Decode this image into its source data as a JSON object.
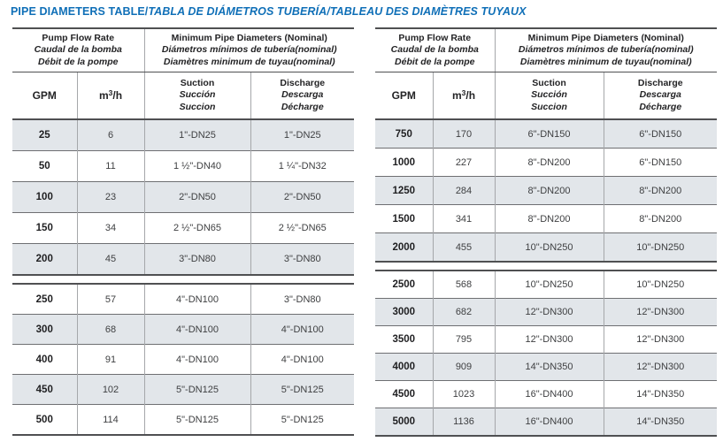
{
  "title": {
    "en": "PIPE DIAMETERS TABLE/",
    "intl": "TABLA DE DIÁMETROS TUBERÍA/TABLEAU DES DIAMÈTRES TUYAUX"
  },
  "colors": {
    "title_blue": "#0f6fb7",
    "row_shade": "#e2e6ea",
    "border_dark": "#4f5052",
    "border_row": "#6e6f72",
    "border_col": "#a5a7aa"
  },
  "header": {
    "flow_group": {
      "l1": "Pump Flow Rate",
      "l2": "Caudal de la bomba",
      "l3": "Débit de la pompe"
    },
    "diam_group": {
      "l1": "Minimum Pipe Diameters (Nominal)",
      "l2": "Diámetros mínimos de tubería(nominal)",
      "l3": "Diamètres minimum de tuyau(nominal)"
    },
    "col_gpm": "GPM",
    "col_m3h": {
      "base": "m",
      "sup": "3",
      "rest": "/h"
    },
    "col_suction": {
      "l1": "Suction",
      "l2": "Succión",
      "l3": "Succion"
    },
    "col_discharge": {
      "l1": "Discharge",
      "l2": "Descarga",
      "l3": "Décharge"
    }
  },
  "tables": {
    "left": {
      "section1": [
        {
          "gpm": "25",
          "m3h": "6",
          "suction": "1\"-DN25",
          "discharge": "1\"-DN25",
          "shaded": true
        },
        {
          "gpm": "50",
          "m3h": "11",
          "suction": "1 ½\"-DN40",
          "discharge": "1 ¼\"-DN32",
          "shaded": false
        },
        {
          "gpm": "100",
          "m3h": "23",
          "suction": "2\"-DN50",
          "discharge": "2\"-DN50",
          "shaded": true
        },
        {
          "gpm": "150",
          "m3h": "34",
          "suction": "2 ½\"-DN65",
          "discharge": "2 ½\"-DN65",
          "shaded": false
        },
        {
          "gpm": "200",
          "m3h": "45",
          "suction": "3\"-DN80",
          "discharge": "3\"-DN80",
          "shaded": true
        }
      ],
      "section2": [
        {
          "gpm": "250",
          "m3h": "57",
          "suction": "4\"-DN100",
          "discharge": "3\"-DN80",
          "shaded": false
        },
        {
          "gpm": "300",
          "m3h": "68",
          "suction": "4\"-DN100",
          "discharge": "4\"-DN100",
          "shaded": true
        },
        {
          "gpm": "400",
          "m3h": "91",
          "suction": "4\"-DN100",
          "discharge": "4\"-DN100",
          "shaded": false
        },
        {
          "gpm": "450",
          "m3h": "102",
          "suction": "5\"-DN125",
          "discharge": "5\"-DN125",
          "shaded": true
        },
        {
          "gpm": "500",
          "m3h": "114",
          "suction": "5\"-DN125",
          "discharge": "5\"-DN125",
          "shaded": false
        }
      ]
    },
    "right": {
      "section1": [
        {
          "gpm": "750",
          "m3h": "170",
          "suction": "6\"-DN150",
          "discharge": "6\"-DN150",
          "shaded": true
        },
        {
          "gpm": "1000",
          "m3h": "227",
          "suction": "8\"-DN200",
          "discharge": "6\"-DN150",
          "shaded": false
        },
        {
          "gpm": "1250",
          "m3h": "284",
          "suction": "8\"-DN200",
          "discharge": "8\"-DN200",
          "shaded": true
        },
        {
          "gpm": "1500",
          "m3h": "341",
          "suction": "8\"-DN200",
          "discharge": "8\"-DN200",
          "shaded": false
        },
        {
          "gpm": "2000",
          "m3h": "455",
          "suction": "10\"-DN250",
          "discharge": "10\"-DN250",
          "shaded": true
        }
      ],
      "section2": [
        {
          "gpm": "2500",
          "m3h": "568",
          "suction": "10\"-DN250",
          "discharge": "10\"-DN250",
          "shaded": false
        },
        {
          "gpm": "3000",
          "m3h": "682",
          "suction": "12\"-DN300",
          "discharge": "12\"-DN300",
          "shaded": true
        },
        {
          "gpm": "3500",
          "m3h": "795",
          "suction": "12\"-DN300",
          "discharge": "12\"-DN300",
          "shaded": false
        },
        {
          "gpm": "4000",
          "m3h": "909",
          "suction": "14\"-DN350",
          "discharge": "12\"-DN300",
          "shaded": true
        },
        {
          "gpm": "4500",
          "m3h": "1023",
          "suction": "16\"-DN400",
          "discharge": "14\"-DN350",
          "shaded": false
        },
        {
          "gpm": "5000",
          "m3h": "1136",
          "suction": "16\"-DN400",
          "discharge": "14\"-DN350",
          "shaded": true
        }
      ]
    }
  }
}
